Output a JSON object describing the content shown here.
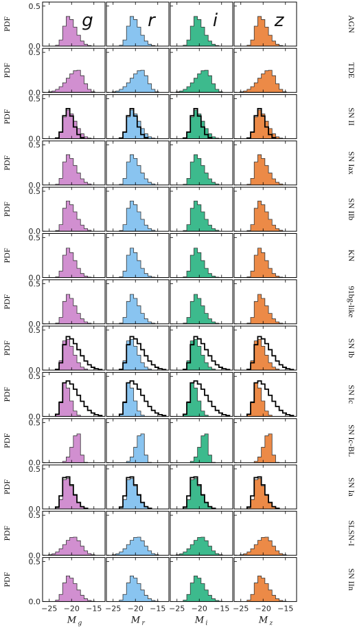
{
  "chart_data": {
    "type": "histogram-grid",
    "bands": [
      {
        "key": "g",
        "label": "g",
        "xlabel": "M",
        "xlabel_sub": "g",
        "color": "#d18fd0"
      },
      {
        "key": "r",
        "label": "r",
        "xlabel": "M",
        "xlabel_sub": "r",
        "color": "#89c4f0"
      },
      {
        "key": "i",
        "label": "i",
        "xlabel": "M",
        "xlabel_sub": "i",
        "color": "#3dba8d"
      },
      {
        "key": "z",
        "label": "z",
        "xlabel": "M",
        "xlabel_sub": "z",
        "color": "#ec8a47"
      }
    ],
    "ylabel": "PDF",
    "xlim": [
      -26.5,
      -12.5
    ],
    "ylim": [
      0,
      0.55
    ],
    "xticks": [
      -25,
      -20,
      -15
    ],
    "xtick_labels": [
      "−25",
      "−20",
      "−15"
    ],
    "yticks": [
      0,
      0.5
    ],
    "ytick_labels": [
      "0.0",
      "0.5"
    ],
    "bin_width": 0.8,
    "classes": [
      {
        "name": "AGN",
        "mu": -20.8,
        "sl": 0.9,
        "sr": 1.7,
        "peak": 0.37,
        "obs": null
      },
      {
        "name": "TDE",
        "mu": -18.6,
        "sl": 2.3,
        "sr": 1.3,
        "peak": 0.28,
        "obs": null
      },
      {
        "name": "SN II",
        "mu": -21.0,
        "sl": 0.8,
        "sr": 1.8,
        "peak": 0.36,
        "obs": {
          "mu": -21.0,
          "sl": 0.8,
          "sr": 1.3,
          "peak": 0.38
        }
      },
      {
        "name": "SN Iax",
        "mu": -21.0,
        "sl": 0.8,
        "sr": 1.9,
        "peak": 0.38,
        "obs": null
      },
      {
        "name": "SN IIb",
        "mu": -21.0,
        "sl": 0.8,
        "sr": 1.9,
        "peak": 0.38,
        "obs": null
      },
      {
        "name": "KN",
        "mu": -21.0,
        "sl": 0.8,
        "sr": 1.7,
        "peak": 0.37,
        "obs": null
      },
      {
        "name": "91bg-like",
        "mu": -21.0,
        "sl": 0.8,
        "sr": 1.8,
        "peak": 0.37,
        "obs": null
      },
      {
        "name": "SN Ib",
        "mu": -21.3,
        "sl": 0.7,
        "sr": 1.7,
        "peak": 0.4,
        "obs": {
          "mu": -21.0,
          "sl": 0.8,
          "sr": 2.6,
          "peak": 0.42
        }
      },
      {
        "name": "SN Ic",
        "mu": -21.5,
        "sl": 0.7,
        "sr": 1.2,
        "peak": 0.42,
        "obs": {
          "mu": -21.3,
          "sl": 0.8,
          "sr": 2.8,
          "peak": 0.45
        }
      },
      {
        "name": "SN Ic-BL",
        "mu": -18.6,
        "sl": 1.2,
        "sr": 0.6,
        "peak": 0.38,
        "obs": null
      },
      {
        "name": "SN Ia",
        "mu": -21.3,
        "sl": 0.7,
        "sr": 1.6,
        "peak": 0.4,
        "obs": {
          "mu": -21.3,
          "sl": 0.8,
          "sr": 1.6,
          "peak": 0.42
        }
      },
      {
        "name": "SLSN-I",
        "mu": -19.5,
        "sl": 2.0,
        "sr": 1.6,
        "peak": 0.23,
        "obs": null
      },
      {
        "name": "SN IIn",
        "mu": -20.8,
        "sl": 1.0,
        "sr": 1.9,
        "peak": 0.32,
        "obs": null
      }
    ]
  }
}
